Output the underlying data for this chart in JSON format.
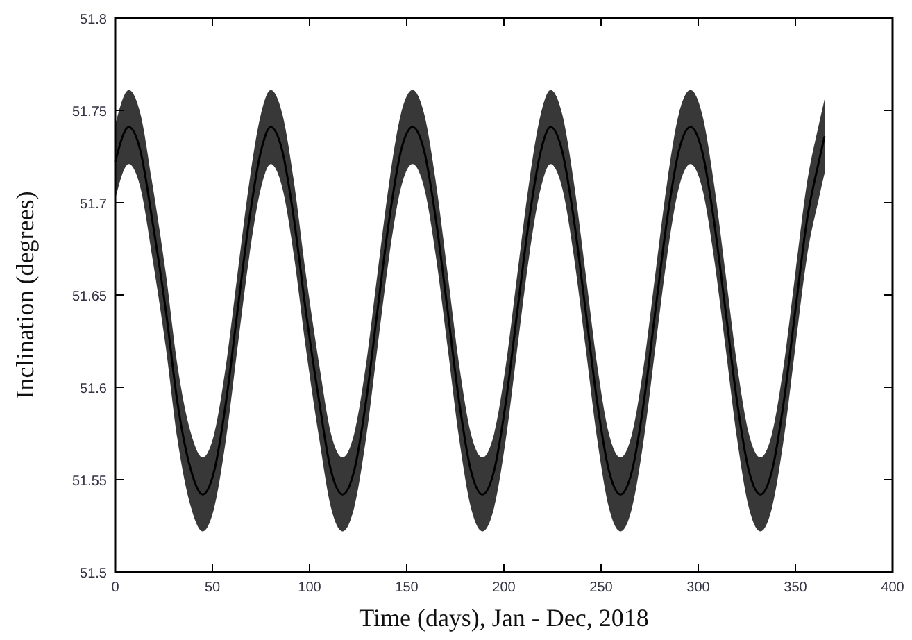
{
  "chart_data": {
    "type": "line",
    "xlabel": "Time (days), Jan - Dec, 2018",
    "ylabel": "Inclination (degrees)",
    "xlim": [
      0,
      400
    ],
    "xticks": [
      0,
      50,
      100,
      150,
      200,
      250,
      300,
      350,
      400
    ],
    "ylim": [
      51.5,
      51.8
    ],
    "yticks": [
      51.5,
      51.55,
      51.6,
      51.65,
      51.7,
      51.75,
      51.8
    ],
    "series": [
      {
        "color": "#000000",
        "x": [
          0,
          7,
          13,
          19,
          26,
          32,
          39,
          45,
          51,
          57,
          63,
          69,
          75,
          80,
          86,
          92,
          98,
          105,
          111,
          117,
          123,
          129,
          135,
          141,
          147,
          153,
          159,
          165,
          171,
          177,
          183,
          189,
          195,
          201,
          207,
          213,
          219,
          224,
          230,
          236,
          242,
          248,
          254,
          260,
          266,
          272,
          278,
          284,
          290,
          296,
          302,
          308,
          314,
          320,
          326,
          332,
          338,
          344,
          350,
          356,
          362,
          365
        ],
        "values": [
          51.722,
          51.741,
          51.728,
          51.691,
          51.642,
          51.592,
          51.555,
          51.542,
          51.555,
          51.592,
          51.642,
          51.691,
          51.728,
          51.741,
          51.728,
          51.691,
          51.642,
          51.592,
          51.555,
          51.542,
          51.555,
          51.592,
          51.642,
          51.691,
          51.728,
          51.741,
          51.728,
          51.691,
          51.642,
          51.592,
          51.555,
          51.542,
          51.555,
          51.592,
          51.642,
          51.691,
          51.728,
          51.741,
          51.728,
          51.691,
          51.642,
          51.592,
          51.555,
          51.542,
          51.555,
          51.592,
          51.642,
          51.691,
          51.728,
          51.741,
          51.728,
          51.691,
          51.642,
          51.592,
          51.555,
          51.542,
          51.555,
          51.592,
          51.642,
          51.691,
          51.722,
          51.736
        ],
        "lower": [
          51.702,
          51.721,
          51.708,
          51.671,
          51.622,
          51.572,
          51.535,
          51.522,
          51.535,
          51.572,
          51.622,
          51.671,
          51.708,
          51.721,
          51.708,
          51.671,
          51.622,
          51.572,
          51.535,
          51.522,
          51.535,
          51.572,
          51.622,
          51.671,
          51.708,
          51.721,
          51.708,
          51.671,
          51.622,
          51.572,
          51.535,
          51.522,
          51.535,
          51.572,
          51.622,
          51.671,
          51.708,
          51.721,
          51.708,
          51.671,
          51.622,
          51.572,
          51.535,
          51.522,
          51.535,
          51.572,
          51.622,
          51.671,
          51.708,
          51.721,
          51.708,
          51.671,
          51.622,
          51.572,
          51.535,
          51.522,
          51.535,
          51.572,
          51.622,
          51.671,
          51.702,
          51.716
        ],
        "upper": [
          51.742,
          51.761,
          51.748,
          51.711,
          51.662,
          51.612,
          51.575,
          51.562,
          51.575,
          51.612,
          51.662,
          51.711,
          51.748,
          51.761,
          51.748,
          51.711,
          51.662,
          51.612,
          51.575,
          51.562,
          51.575,
          51.612,
          51.662,
          51.711,
          51.748,
          51.761,
          51.748,
          51.711,
          51.662,
          51.612,
          51.575,
          51.562,
          51.575,
          51.612,
          51.662,
          51.711,
          51.748,
          51.761,
          51.748,
          51.711,
          51.662,
          51.612,
          51.575,
          51.562,
          51.575,
          51.612,
          51.662,
          51.711,
          51.748,
          51.761,
          51.748,
          51.711,
          51.662,
          51.612,
          51.575,
          51.562,
          51.575,
          51.612,
          51.662,
          51.711,
          51.742,
          51.756
        ]
      }
    ]
  }
}
